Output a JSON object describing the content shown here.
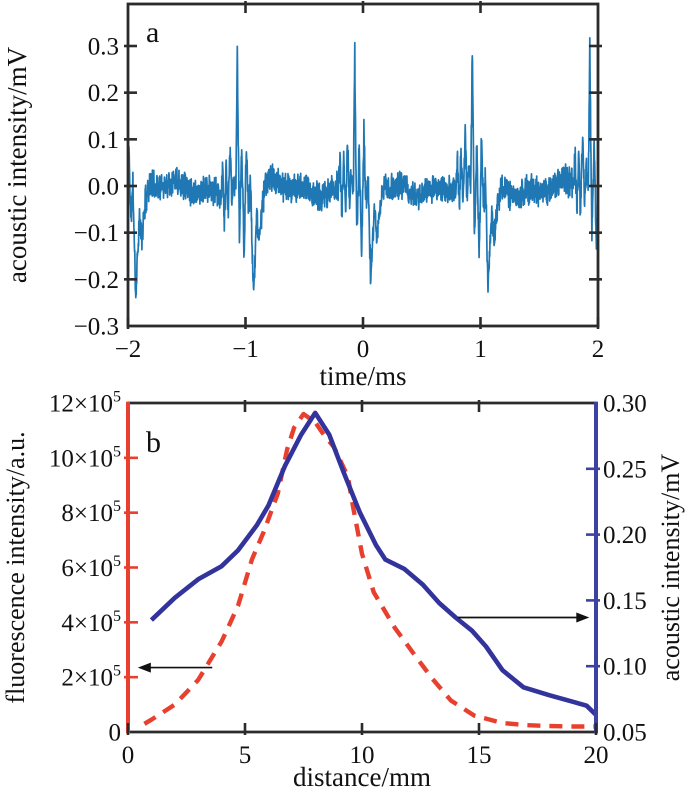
{
  "figure": {
    "description": "Two-panel scientific figure: (a) photoacoustic time-domain signal, (b) fluorescence and acoustic intensity versus distance",
    "background": "#ffffff"
  },
  "chart_data": [
    {
      "panel_label": "a",
      "type": "line",
      "title": "",
      "xlabel": "time/ms",
      "ylabel": "acoustic intensity/mV",
      "xlim": [
        -2,
        2
      ],
      "ylim": [
        -0.3,
        0.39
      ],
      "xticks": [
        -2,
        -1,
        0,
        1,
        2
      ],
      "xtick_labels": [
        "−2",
        "−1",
        "0",
        "1",
        "2"
      ],
      "yticks": [
        0.3,
        0.2,
        0.1,
        0.0,
        -0.1,
        -0.2,
        -0.3
      ],
      "ytick_labels": [
        "0.3",
        "0.2",
        "0.1",
        "0.0",
        "−0.1",
        "−0.2",
        "−0.3"
      ],
      "grid": false,
      "line_color": "#1f77b4",
      "axis_color": "#2b2b2b",
      "signal": {
        "kind": "periodic acoustic bursts over a noise floor",
        "burst_times_ms": [
          -2.07,
          -1.07,
          -0.07,
          0.93,
          1.93
        ],
        "period_ms": 1.0,
        "main_peak_mV": 0.29,
        "deep_trough_mV": -0.22,
        "noise_band_mV": 0.04,
        "samples": 2001,
        "noise_seed": 11,
        "burst_template_dt_mV": [
          [
            -0.14,
            0.0
          ],
          [
            -0.125,
            0.055
          ],
          [
            -0.11,
            -0.05
          ],
          [
            -0.095,
            0.07
          ],
          [
            -0.08,
            -0.055
          ],
          [
            -0.06,
            0.1
          ],
          [
            -0.045,
            -0.04
          ],
          [
            -0.03,
            0.03
          ],
          [
            -0.012,
            -0.01
          ],
          [
            0.0,
            0.29
          ],
          [
            0.018,
            -0.11
          ],
          [
            0.038,
            0.085
          ],
          [
            0.058,
            -0.155
          ],
          [
            0.078,
            0.1
          ],
          [
            0.095,
            -0.06
          ],
          [
            0.112,
            0.02
          ],
          [
            0.135,
            -0.225
          ],
          [
            0.165,
            -0.07
          ],
          [
            0.19,
            -0.115
          ],
          [
            0.215,
            -0.04
          ],
          [
            0.25,
            0.0
          ]
        ]
      }
    },
    {
      "panel_label": "b",
      "type": "line",
      "title": "",
      "xlabel": "distance/mm",
      "xlim": [
        0,
        20
      ],
      "xticks": [
        0,
        5,
        10,
        15,
        20
      ],
      "xtick_labels": [
        "0",
        "5",
        "10",
        "15",
        "20"
      ],
      "axis_color": "#2b2b2b",
      "left_axis": {
        "label": "fluorescence intensity/a.u.",
        "color": "#e8402e",
        "lim_1e5": [
          0,
          12
        ],
        "unit": "×10⁵ a.u.",
        "ticks_1e5": [
          0,
          2,
          4,
          6,
          8,
          10,
          12
        ],
        "tick_labels": [
          "0",
          "2×10^5",
          "4×10^5",
          "6×10^5",
          "8×10^5",
          "10×10^5",
          "12×10^5"
        ]
      },
      "right_axis": {
        "label": "acoustic intensity/mV",
        "color": "#3c42a0",
        "lim_mV": [
          0.05,
          0.3
        ],
        "ticks_mV": [
          0.05,
          0.1,
          0.15,
          0.2,
          0.25,
          0.3
        ],
        "tick_labels": [
          "0.05",
          "0.10",
          "0.15",
          "0.20",
          "0.25",
          "0.30"
        ]
      },
      "series": [
        {
          "name": "fluorescence intensity",
          "axis": "left",
          "style": "dashed",
          "color": "#e8402e",
          "x_mm": [
            0.7,
            1,
            2,
            3,
            4,
            4.7,
            5.3,
            5.8,
            6.4,
            6.8,
            7.1,
            7.5,
            8,
            8.4,
            8.8,
            9.4,
            9.6,
            10,
            10.5,
            11.4,
            12.3,
            13,
            13.8,
            14.8,
            16,
            17,
            18,
            19,
            20
          ],
          "y_1e5": [
            0.3,
            0.45,
            1.0,
            1.9,
            3.3,
            4.6,
            6.3,
            7.3,
            8.7,
            10.3,
            11.1,
            11.6,
            11.3,
            10.8,
            10.4,
            9.3,
            8.3,
            6.5,
            5.1,
            3.8,
            2.75,
            1.95,
            1.15,
            0.6,
            0.33,
            0.25,
            0.22,
            0.2,
            0.2
          ]
        },
        {
          "name": "acoustic intensity",
          "axis": "right",
          "style": "solid",
          "color": "#32339b",
          "x_mm": [
            1,
            2,
            3,
            3.5,
            4,
            4.7,
            5.5,
            6,
            6.7,
            7.4,
            8,
            8.6,
            9.2,
            9.9,
            10.6,
            11,
            11.8,
            12.6,
            13.3,
            14,
            14.7,
            15.3,
            16,
            16.9,
            18,
            19,
            19.6,
            20
          ],
          "y_mV": [
            0.135,
            0.152,
            0.166,
            0.171,
            0.176,
            0.188,
            0.207,
            0.222,
            0.252,
            0.276,
            0.2925,
            0.276,
            0.248,
            0.217,
            0.192,
            0.181,
            0.174,
            0.162,
            0.148,
            0.137,
            0.127,
            0.115,
            0.097,
            0.084,
            0.078,
            0.073,
            0.07,
            0.063
          ]
        }
      ],
      "annotations": [
        {
          "type": "arrow",
          "direction": "left",
          "meaning": "dashed curve read on left axis",
          "y_1e5": 2.35,
          "x_from_mm": 3.6,
          "x_to_mm": 0.25
        },
        {
          "type": "arrow",
          "direction": "right",
          "meaning": "solid curve read on right axis",
          "y_mV": 0.137,
          "x_from_mm": 14.1,
          "x_to_mm": 19.8
        }
      ]
    }
  ]
}
